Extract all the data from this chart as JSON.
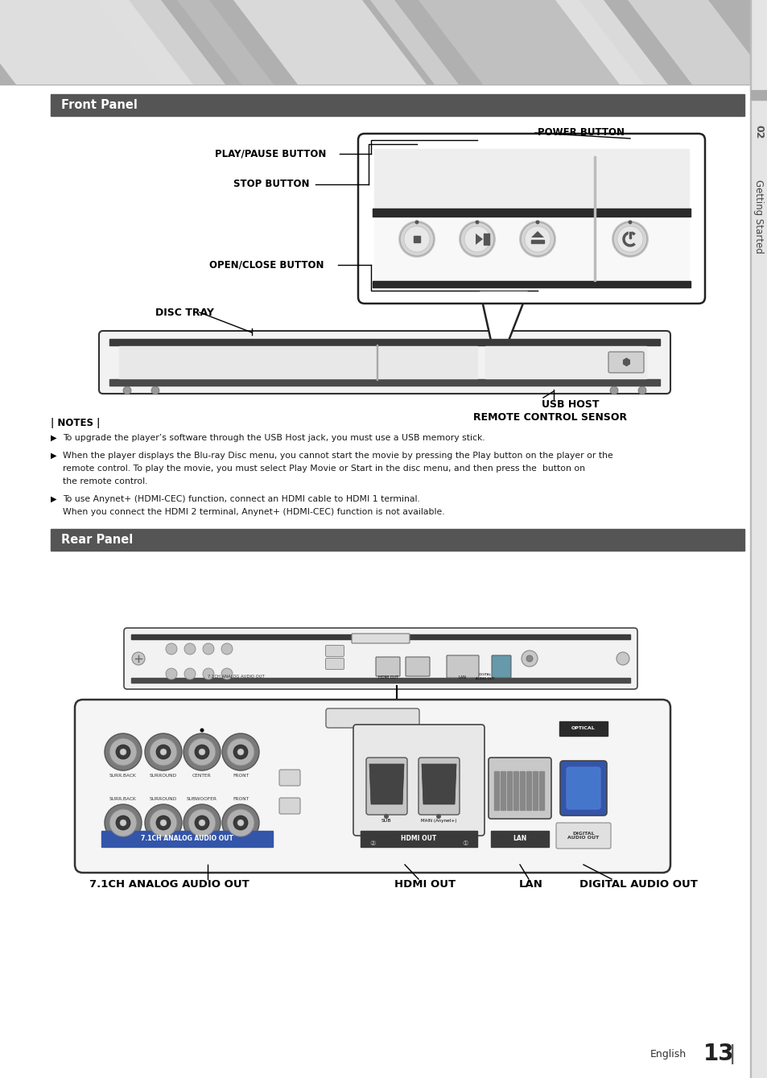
{
  "page_bg": "#ffffff",
  "section_header_bg": "#555555",
  "section_header_text": "#ffffff",
  "front_panel_title": "Front Panel",
  "rear_panel_title": "Rear Panel",
  "notes_title": "| NOTES |",
  "note1": "To upgrade the player’s software through the USB Host jack, you must use a USB memory stick.",
  "note2_l1": "When the player displays the Blu-ray Disc menu, you cannot start the movie by pressing the Play button on the player or the",
  "note2_l2": "remote control. To play the movie, you must select Play Movie or Start in the disc menu, and then press the  button on",
  "note2_l3": "the remote control.",
  "note3_l1": "To use Anynet+ (HDMI-CEC) function, connect an HDMI cable to HDMI 1 terminal.",
  "note3_l2": "When you connect the HDMI 2 terminal, Anynet+ (HDMI-CEC) function is not available.",
  "label_power": "POWER BUTTON",
  "label_play": "PLAY/PAUSE BUTTON",
  "label_stop": "STOP BUTTON",
  "label_open": "OPEN/CLOSE BUTTON",
  "label_disc": "DISC TRAY",
  "label_usb": "USB HOST",
  "label_remote": "REMOTE CONTROL SENSOR",
  "label_analog": "7.1CH ANALOG AUDIO OUT",
  "label_hdmi": "HDMI OUT",
  "label_lan": "LAN",
  "label_digital": "DIGITAL AUDIO OUT",
  "page_label": "English",
  "page_num": "13"
}
